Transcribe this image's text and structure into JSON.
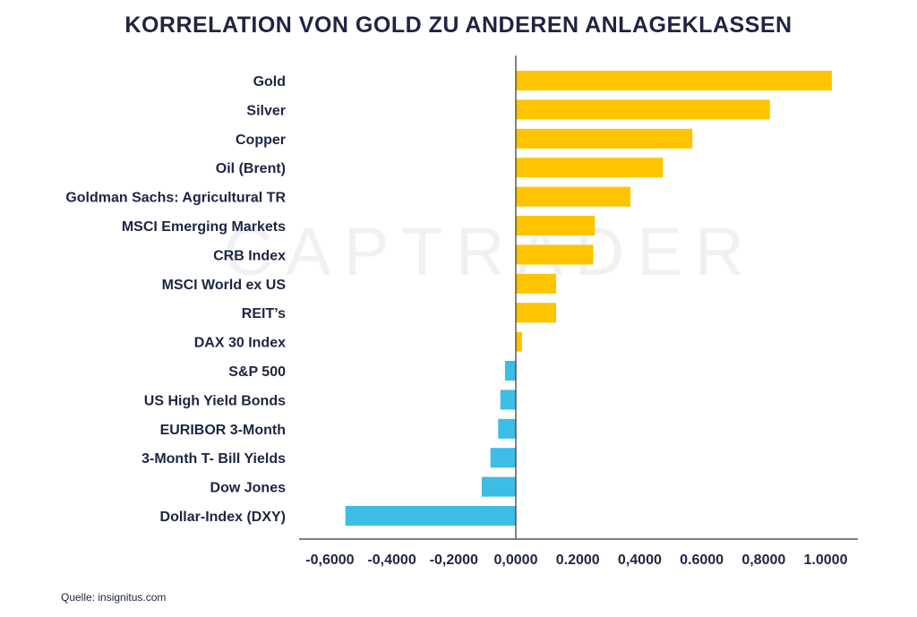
{
  "title": "KORRELATION VON GOLD ZU ANDEREN ANLAGEKLASSEN",
  "watermark": "CAPTRADER",
  "source": "Quelle: insignitus.com",
  "colors": {
    "positive": "#ffc400",
    "negative": "#3dbde6",
    "text": "#1e2542",
    "axis": "#555555"
  },
  "chart_data": {
    "type": "bar",
    "orientation": "horizontal",
    "categories": [
      "Gold",
      "Silver",
      "Copper",
      "Oil (Brent)",
      "Goldman Sachs: Agricultural TR",
      "MSCI Emerging Markets",
      "CRB Index",
      "MSCI World ex US",
      "REIT’s",
      "DAX 30 Index",
      "S&P 500",
      "US High Yield Bonds",
      "EURIBOR 3-Month",
      "3-Month T- Bill Yields",
      "Dow Jones",
      "Dollar-Index (DXY)"
    ],
    "values": [
      1.02,
      0.82,
      0.57,
      0.475,
      0.37,
      0.255,
      0.25,
      0.13,
      0.13,
      0.02,
      -0.035,
      -0.05,
      -0.057,
      -0.082,
      -0.11,
      -0.55
    ],
    "xlim": [
      -0.7,
      1.1
    ],
    "xticks": [
      -0.6,
      -0.4,
      -0.2,
      0.0,
      0.2,
      0.4,
      0.6,
      0.8,
      1.0
    ],
    "xtick_labels": [
      "-0,6000",
      "-0,4000",
      "-0,2000",
      "0,0000",
      "0.2000",
      "0,4000",
      "0.6000",
      "0,8000",
      "1.0000"
    ],
    "xlabel": "",
    "ylabel": "",
    "grid": false,
    "legend": "none"
  }
}
